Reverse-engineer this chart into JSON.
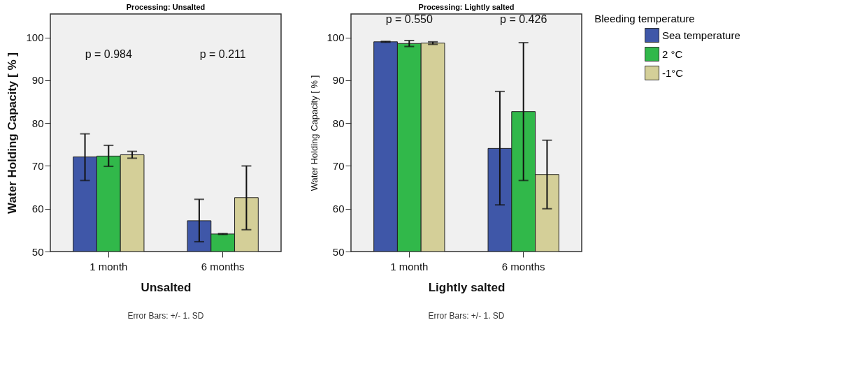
{
  "chart_data": [
    {
      "type": "bar",
      "title": "Processing: Unsalted",
      "xlabel": "Unsalted",
      "ylabel": "Water Holding Capacity [ % ]",
      "categories": [
        "1 month",
        "6 months"
      ],
      "ylim": [
        50,
        105.5
      ],
      "yticks": [
        50,
        60,
        70,
        80,
        90,
        100
      ],
      "series": [
        {
          "color": "#3f57a8",
          "values": [
            72.1,
            57.2
          ],
          "errors": [
            [
              66.6,
              77.5
            ],
            [
              52.3,
              62.2
            ]
          ]
        },
        {
          "color": "#31b84a",
          "values": [
            72.3,
            54.1
          ],
          "errors": [
            [
              69.9,
              74.8
            ],
            [
              54.0,
              54.2
            ]
          ]
        },
        {
          "color": "#d4cf98",
          "values": [
            72.6,
            62.6
          ],
          "errors": [
            [
              71.8,
              73.4
            ],
            [
              55.1,
              70.0
            ]
          ]
        }
      ],
      "annotations": [
        "p = 0.984",
        "p = 0.211",
        "Error Bars: +/- 1. SD"
      ]
    },
    {
      "type": "bar",
      "title": "Processing: Lightly salted",
      "xlabel": "Lightly salted",
      "ylabel": "Water Holding Capacity [ % ]",
      "categories": [
        "1 month",
        "6 months"
      ],
      "ylim": [
        50,
        105.5
      ],
      "yticks": [
        50,
        60,
        70,
        80,
        90,
        100
      ],
      "legend": "right",
      "legend_title": "Bleeding temperature",
      "series": [
        {
          "name": "Sea temperature",
          "color": "#3f57a8",
          "values": [
            99.0,
            74.1
          ],
          "errors": [
            [
              98.9,
              99.1
            ],
            [
              60.9,
              87.4
            ]
          ]
        },
        {
          "name": "2 °C",
          "color": "#31b84a",
          "values": [
            98.6,
            82.7
          ],
          "errors": [
            [
              97.9,
              99.3
            ],
            [
              66.6,
              98.8
            ]
          ]
        },
        {
          "name": "-1°C",
          "color": "#d4cf98",
          "values": [
            98.7,
            68.0
          ],
          "errors": [
            [
              98.4,
              99.0
            ],
            [
              60.0,
              76.0
            ]
          ]
        }
      ],
      "annotations": [
        "p = 0.550",
        "p = 0.426",
        "Error Bars: +/- 1. SD"
      ]
    }
  ]
}
